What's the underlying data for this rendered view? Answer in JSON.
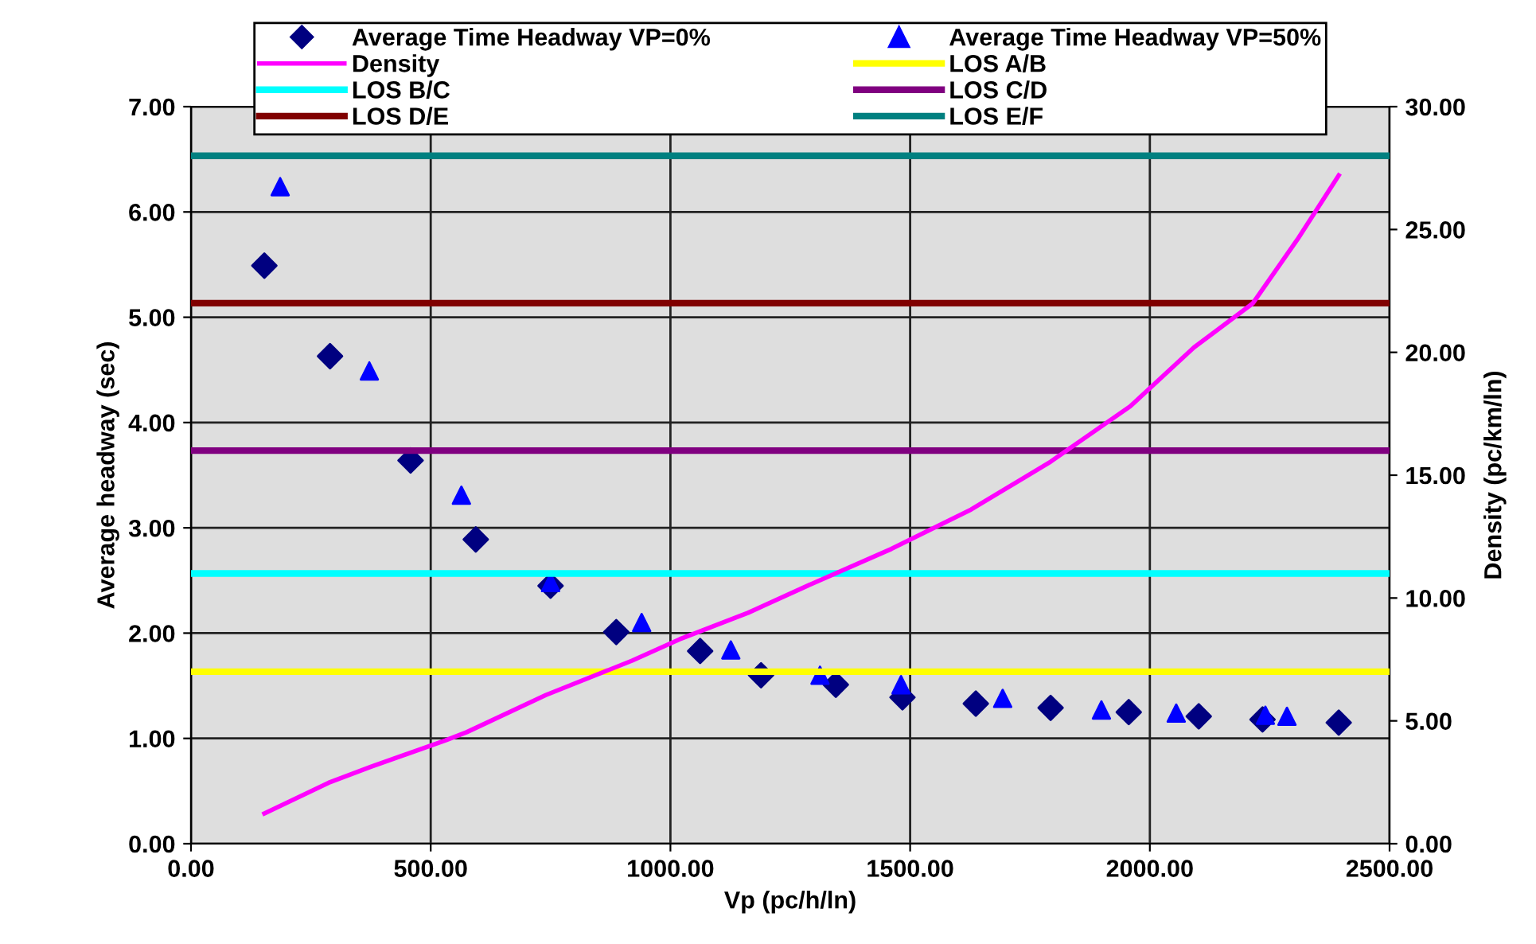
{
  "chart_data": {
    "type": "scatter",
    "xlabel": "Vp (pc/h/ln)",
    "ylabel": "Average headway (sec)",
    "y2label": "Density (pc/km/ln)",
    "xlim": [
      0,
      2500
    ],
    "xticks": [
      {
        "value": 0,
        "label": "0.00"
      },
      {
        "value": 500,
        "label": "500.00"
      },
      {
        "value": 1000,
        "label": "1000.00"
      },
      {
        "value": 1500,
        "label": "1500.00"
      },
      {
        "value": 2000,
        "label": "2000.00"
      },
      {
        "value": 2500,
        "label": "2500.00"
      }
    ],
    "ylim": [
      0,
      7
    ],
    "yticks": [
      {
        "value": 0,
        "label": "0.00"
      },
      {
        "value": 1,
        "label": "1.00"
      },
      {
        "value": 2,
        "label": "2.00"
      },
      {
        "value": 3,
        "label": "3.00"
      },
      {
        "value": 4,
        "label": "4.00"
      },
      {
        "value": 5,
        "label": "5.00"
      },
      {
        "value": 6,
        "label": "6.00"
      },
      {
        "value": 7,
        "label": "7.00"
      }
    ],
    "y2lim": [
      0,
      30
    ],
    "y2ticks": [
      {
        "value": 0,
        "label": "0.00"
      },
      {
        "value": 5,
        "label": "5.00"
      },
      {
        "value": 10,
        "label": "10.00"
      },
      {
        "value": 15,
        "label": "15.00"
      },
      {
        "value": 20,
        "label": "20.00"
      },
      {
        "value": 25,
        "label": "25.00"
      },
      {
        "value": 30,
        "label": "30.00"
      }
    ],
    "grid": true,
    "legend": "top",
    "series": [
      {
        "name": "Average Time Headway VP=0%",
        "marker": "diamond",
        "color": "#000080",
        "x": [
          153,
          290,
          458,
          594,
          750,
          887,
          1062,
          1189,
          1345,
          1484,
          1637,
          1793,
          1956,
          2102,
          2235,
          2394
        ],
        "values": [
          5.49,
          4.63,
          3.64,
          2.89,
          2.45,
          2.01,
          1.83,
          1.6,
          1.51,
          1.39,
          1.33,
          1.29,
          1.25,
          1.21,
          1.18,
          1.15
        ]
      },
      {
        "name": "Average Time Headway VP=50%",
        "marker": "triangle",
        "color": "#0000ff",
        "x": [
          186,
          372,
          564,
          750,
          940,
          1126,
          1312,
          1481,
          1693,
          1899,
          2055,
          2241,
          2286
        ],
        "values": [
          6.24,
          4.49,
          3.31,
          2.48,
          2.1,
          1.84,
          1.6,
          1.51,
          1.38,
          1.27,
          1.24,
          1.22,
          1.21
        ]
      },
      {
        "name": "Density",
        "type": "line",
        "axis": "y2",
        "marker": "none",
        "color": "#ff00ff",
        "x": [
          153,
          287,
          375,
          531,
          575,
          740,
          920,
          1019,
          1162,
          1295,
          1461,
          1627,
          1793,
          1959,
          2092,
          2215,
          2308,
          2394
        ],
        "values": [
          1.23,
          2.48,
          3.13,
          4.21,
          4.54,
          6.05,
          7.45,
          8.32,
          9.4,
          10.58,
          12.0,
          13.6,
          15.55,
          17.8,
          20.2,
          22.0,
          24.6,
          27.2
        ]
      }
    ],
    "ref_lines": [
      {
        "axis": "y2",
        "value": 7,
        "label": "LOS A/B",
        "color": "#ffff00"
      },
      {
        "axis": "y2",
        "value": 11,
        "label": "LOS B/C",
        "color": "#00ffff"
      },
      {
        "axis": "y2",
        "value": 16,
        "label": "LOS C/D",
        "color": "#800080"
      },
      {
        "axis": "y2",
        "value": 22,
        "label": "LOS D/E",
        "color": "#800000"
      },
      {
        "axis": "y2",
        "value": 28,
        "label": "LOS E/F",
        "color": "#008080"
      }
    ]
  }
}
